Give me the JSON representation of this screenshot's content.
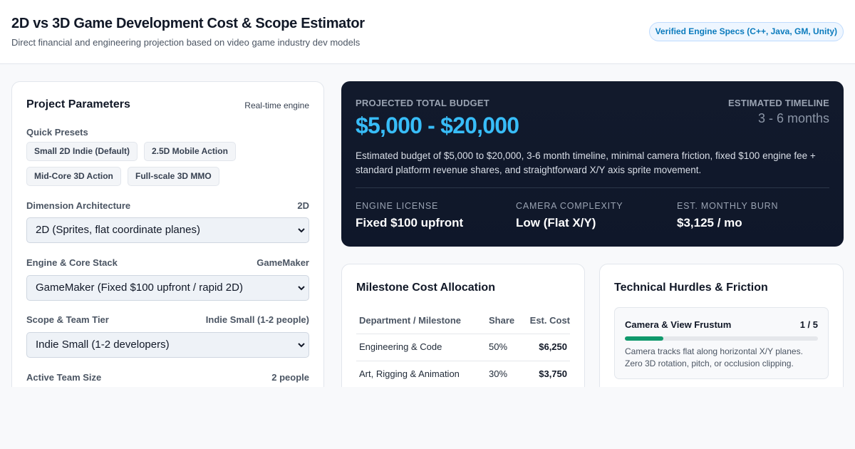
{
  "header": {
    "title": "2D vs 3D Game Development Cost & Scope Estimator",
    "subtitle": "Direct financial and engineering projection based on video game industry dev models",
    "badge": "Verified Engine Specs (C++, Java, GM, Unity)"
  },
  "params": {
    "title": "Project Parameters",
    "engine_note": "Real-time engine",
    "presets_label": "Quick Presets",
    "presets": [
      "Small 2D Indie (Default)",
      "2.5D Mobile Action",
      "Mid-Core 3D Action",
      "Full-scale 3D MMO"
    ],
    "dimension": {
      "label": "Dimension Architecture",
      "value": "2D",
      "selected": "2D (Sprites, flat coordinate planes)"
    },
    "engine": {
      "label": "Engine & Core Stack",
      "value": "GameMaker",
      "selected": "GameMaker (Fixed $100 upfront / rapid 2D)"
    },
    "scope": {
      "label": "Scope & Team Tier",
      "value": "Indie Small (1-2 people)",
      "selected": "Indie Small (1-2 developers)"
    },
    "team_size": {
      "label": "Active Team Size",
      "value": "2 people"
    }
  },
  "budget": {
    "label": "Projected Total Budget",
    "amount": "$5,000 - $20,000",
    "timeline_label": "Estimated Timeline",
    "timeline": "3 - 6 months",
    "description": "Estimated budget of $5,000 to $20,000, 3-6 month timeline, minimal camera friction, fixed $100 engine fee + standard platform revenue shares, and straightforward X/Y axis sprite movement.",
    "stats": [
      {
        "label": "Engine License",
        "value": "Fixed $100 upfront"
      },
      {
        "label": "Camera Complexity",
        "value": "Low (Flat X/Y)"
      },
      {
        "label": "Est. Monthly Burn",
        "value": "$3,125 / mo"
      }
    ]
  },
  "milestones": {
    "title": "Milestone Cost Allocation",
    "headers": [
      "Department / Milestone",
      "Share",
      "Est. Cost"
    ],
    "rows": [
      {
        "name": "Engineering & Code",
        "share": "50%",
        "cost": "$6,250"
      },
      {
        "name": "Art, Rigging & Animation",
        "share": "30%",
        "cost": "$3,750"
      }
    ]
  },
  "hurdles": {
    "title": "Technical Hurdles & Friction",
    "items": [
      {
        "title": "Camera & View Frustum",
        "score": "1 / 5",
        "level": 0.2,
        "description": "Camera tracks flat along horizontal X/Y planes. Zero 3D rotation, pitch, or occlusion clipping."
      }
    ]
  },
  "colors": {
    "accent": "#38bdf8",
    "progress": "#10996c",
    "panel_dark": "#0f172a"
  }
}
